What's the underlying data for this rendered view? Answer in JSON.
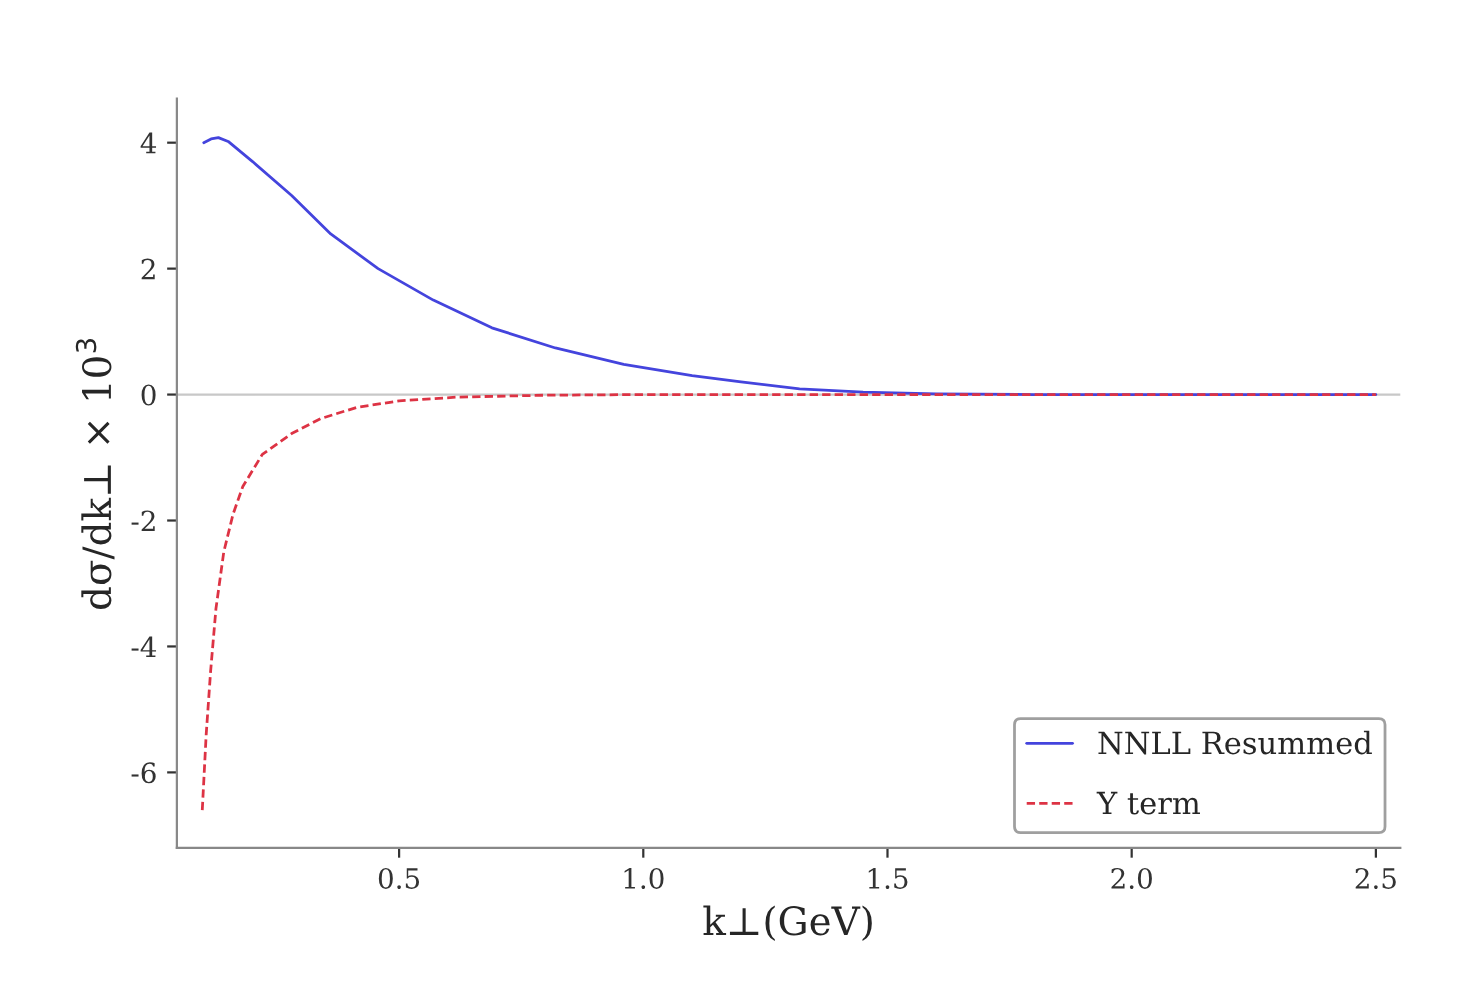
{
  "chart_data": {
    "type": "line",
    "xlabel": "k⊥(GeV)",
    "ylabel": "dσ/dk⊥ × 10$^{3}$",
    "xlim": [
      0.045,
      2.55
    ],
    "xticks": [
      0.5,
      {
        "value": 1,
        "label": "1.0"
      },
      1.5,
      {
        "value": 2,
        "label": "2.0"
      },
      2.5
    ],
    "ylim": [
      -7.2,
      4.7
    ],
    "yticks": [
      -6,
      -4,
      -2,
      0,
      2,
      4
    ],
    "grid": false,
    "legend": "bottom right",
    "ref_lines": [
      {
        "axis": "y",
        "value": 0,
        "color": "#c8c8c8"
      }
    ],
    "series": [
      {
        "name": "NNLL Resummed",
        "color": "#4444dd",
        "line_style": "solid",
        "x": [
          0.1,
          0.115,
          0.13,
          0.15,
          0.2,
          0.28,
          0.36,
          0.457,
          0.57,
          0.69,
          0.82,
          0.96,
          1.1,
          1.2,
          1.32,
          1.45,
          1.6,
          1.8,
          2.0,
          2.2,
          2.5
        ],
        "values": [
          4.0,
          4.06,
          4.08,
          4.02,
          3.7,
          3.16,
          2.55,
          2.0,
          1.5,
          1.06,
          0.74,
          0.48,
          0.3,
          0.2,
          0.09,
          0.04,
          0.01,
          0.0,
          0.0,
          0.0,
          0.0
        ]
      },
      {
        "name": "Y term",
        "color": "#dd3344",
        "line_style": "dashed",
        "x": [
          0.097,
          0.105,
          0.114,
          0.125,
          0.141,
          0.16,
          0.18,
          0.22,
          0.28,
          0.34,
          0.415,
          0.5,
          0.62,
          0.8,
          1.0,
          1.5,
          2.0,
          2.5
        ],
        "values": [
          -6.6,
          -5.4,
          -4.4,
          -3.4,
          -2.5,
          -1.9,
          -1.46,
          -0.95,
          -0.62,
          -0.38,
          -0.2,
          -0.1,
          -0.04,
          -0.01,
          0.0,
          0.0,
          0.0,
          0.0
        ]
      }
    ]
  }
}
